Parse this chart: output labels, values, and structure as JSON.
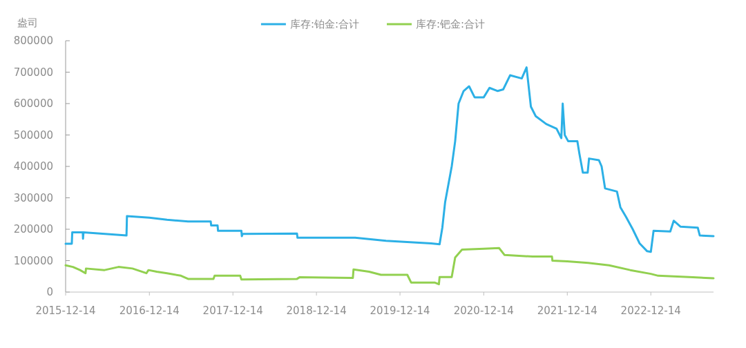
{
  "chart_data": {
    "type": "line",
    "ylabel": "盎司",
    "legend": "top",
    "grid": false,
    "marker": "none",
    "line_style": "solid",
    "xlim": [
      "2015-12-14",
      "2023-09-14"
    ],
    "xticks": [
      "2015-12-14",
      "2016-12-14",
      "2017-12-14",
      "2018-12-14",
      "2019-12-14",
      "2020-12-14",
      "2021-12-14",
      "2022-12-14"
    ],
    "ylim": [
      0,
      800000
    ],
    "yticks": [
      0,
      100000,
      200000,
      300000,
      400000,
      500000,
      600000,
      700000,
      800000
    ],
    "series": [
      {
        "name": "库存:铂金:合计",
        "color": "#2cb0e6",
        "x": [
          "2015-12-14",
          "2016-01-10",
          "2016-01-12",
          "2016-02-27",
          "2016-02-28",
          "2016-03-01",
          "2016-09-05",
          "2016-09-07",
          "2016-12-14",
          "2017-03-01",
          "2017-06-01",
          "2017-09-08",
          "2017-09-10",
          "2017-10-08",
          "2017-10-10",
          "2018-01-20",
          "2018-01-22",
          "2018-01-25",
          "2018-09-20",
          "2018-09-22",
          "2019-06-01",
          "2019-10-14",
          "2020-04-28",
          "2020-06-04",
          "2020-06-16",
          "2020-06-28",
          "2020-07-27",
          "2020-08-11",
          "2020-08-26",
          "2020-09-17",
          "2020-10-11",
          "2020-11-04",
          "2020-12-14",
          "2021-01-08",
          "2021-02-13",
          "2021-03-09",
          "2021-04-08",
          "2021-05-29",
          "2021-06-19",
          "2021-07-08",
          "2021-07-29",
          "2021-09-13",
          "2021-10-28",
          "2021-11-18",
          "2021-11-24",
          "2021-12-03",
          "2021-12-18",
          "2022-01-27",
          "2022-02-05",
          "2022-02-20",
          "2022-03-13",
          "2022-03-19",
          "2022-05-01",
          "2022-05-13",
          "2022-05-28",
          "2022-07-19",
          "2022-08-03",
          "2022-08-27",
          "2022-09-26",
          "2022-10-26",
          "2022-11-28",
          "2022-12-14",
          "2022-12-26",
          "2023-03-09",
          "2023-03-24",
          "2023-04-23",
          "2023-07-07",
          "2023-07-16",
          "2023-09-14"
        ],
        "values": [
          154000,
          154000,
          190000,
          190000,
          170000,
          190000,
          180000,
          242000,
          237000,
          230000,
          225000,
          225000,
          212000,
          212000,
          195000,
          195000,
          178000,
          185000,
          186000,
          173000,
          173000,
          163000,
          155000,
          152000,
          205000,
          285000,
          400000,
          480000,
          600000,
          640000,
          655000,
          620000,
          620000,
          650000,
          640000,
          645000,
          690000,
          680000,
          715000,
          590000,
          560000,
          535000,
          520000,
          490000,
          600000,
          500000,
          480000,
          480000,
          440000,
          380000,
          380000,
          425000,
          420000,
          400000,
          330000,
          320000,
          270000,
          240000,
          200000,
          155000,
          130000,
          128000,
          195000,
          193000,
          227000,
          208000,
          205000,
          180000,
          178000
        ]
      },
      {
        "name": "库存:钯金:合计",
        "color": "#92d050",
        "x": [
          "2015-12-14",
          "2016-01-15",
          "2016-02-15",
          "2016-03-10",
          "2016-03-12",
          "2016-06-01",
          "2016-08-01",
          "2016-10-01",
          "2016-12-01",
          "2016-12-10",
          "2017-01-15",
          "2017-03-01",
          "2017-05-01",
          "2017-06-01",
          "2017-09-20",
          "2017-09-25",
          "2018-01-15",
          "2018-01-20",
          "2018-09-20",
          "2018-10-01",
          "2019-05-22",
          "2019-05-25",
          "2019-08-01",
          "2019-09-22",
          "2020-01-15",
          "2020-02-01",
          "2020-05-15",
          "2020-06-01",
          "2020-06-04",
          "2020-07-27",
          "2020-08-11",
          "2020-09-10",
          "2020-12-14",
          "2021-02-19",
          "2021-03-15",
          "2021-07-15",
          "2021-10-08",
          "2021-10-10",
          "2021-12-14",
          "2022-03-15",
          "2022-06-15",
          "2022-09-15",
          "2022-12-14",
          "2023-01-15",
          "2023-06-15",
          "2023-09-14"
        ],
        "values": [
          85000,
          80000,
          70000,
          60000,
          75000,
          70000,
          80000,
          75000,
          60000,
          70000,
          65000,
          60000,
          52000,
          42000,
          42000,
          52000,
          52000,
          40000,
          42000,
          47000,
          45000,
          72000,
          65000,
          55000,
          55000,
          30000,
          30000,
          25000,
          48000,
          48000,
          110000,
          135000,
          138000,
          140000,
          118000,
          113000,
          113000,
          100000,
          98000,
          93000,
          85000,
          70000,
          58000,
          52000,
          47000,
          44000
        ]
      }
    ]
  }
}
